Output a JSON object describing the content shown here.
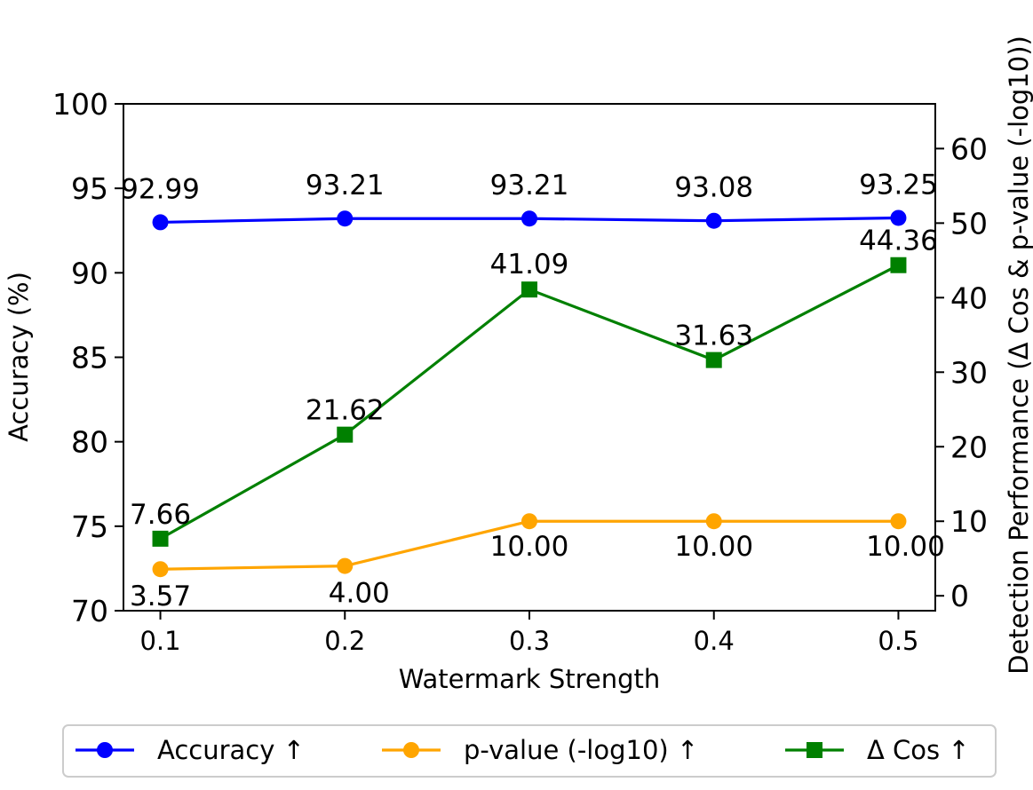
{
  "chart_data": {
    "type": "line",
    "title": "",
    "xlabel": "Watermark Strength",
    "ylabel": "Accuracy (%)",
    "y2label": "Detection Performance (Δ Cos & p-value (-log10))",
    "x": [
      0.1,
      0.2,
      0.3,
      0.4,
      0.5
    ],
    "x_tick_labels": [
      "0.1",
      "0.2",
      "0.3",
      "0.4",
      "0.5"
    ],
    "xlim": [
      0.08,
      0.52
    ],
    "ylim": [
      70,
      100
    ],
    "y_ticks": [
      70,
      75,
      80,
      85,
      90,
      95,
      100
    ],
    "y_tick_labels": [
      "70",
      "75",
      "80",
      "85",
      "90",
      "95",
      "100"
    ],
    "y2lim": [
      -2,
      66
    ],
    "y2_ticks": [
      0,
      10,
      20,
      30,
      40,
      50,
      60
    ],
    "y2_tick_labels": [
      "0",
      "10",
      "20",
      "30",
      "40",
      "50",
      "60"
    ],
    "grid": false,
    "legend_position": "bottom",
    "series": [
      {
        "name": "Accuracy ↑",
        "axis": "left",
        "marker": "circle",
        "color": "#0000ff",
        "values": [
          92.99,
          93.21,
          93.21,
          93.08,
          93.25
        ],
        "labels": [
          "92.99",
          "93.21",
          "93.21",
          "93.08",
          "93.25"
        ]
      },
      {
        "name": "p-value (-log10) ↑",
        "axis": "right",
        "marker": "circle",
        "color": "#ffa500",
        "values": [
          3.57,
          4.0,
          10.0,
          10.0,
          10.0
        ],
        "labels": [
          "3.57",
          "4.00",
          "10.00",
          "10.00",
          "10.00"
        ]
      },
      {
        "name": "Δ Cos ↑",
        "axis": "right",
        "marker": "square",
        "color": "#008000",
        "values": [
          7.66,
          21.62,
          41.09,
          31.63,
          44.36
        ],
        "labels": [
          "7.66",
          "21.62",
          "41.09",
          "31.63",
          "44.36"
        ]
      }
    ]
  }
}
